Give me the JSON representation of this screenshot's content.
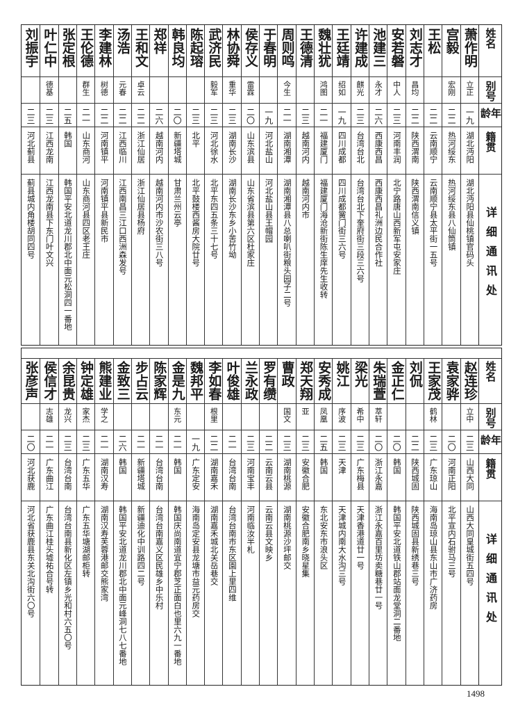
{
  "headers": {
    "name": "姓名",
    "alias": "别号",
    "age": "年龄",
    "origin": "籍贯",
    "address": "详细通讯处"
  },
  "top_table": [
    {
      "name": "萧作明",
      "alias": "立正",
      "age": "一九",
      "origin": "湖北沔阳",
      "address": "湖北沔阳县仙桃镇官码头"
    },
    {
      "name": "宫毅",
      "alias": "宏刚",
      "age": "二二",
      "origin": "热河绥东",
      "address": "热河绥东县八仙筒镇"
    },
    {
      "name": "王松",
      "alias": "",
      "age": "二二",
      "origin": "云南顺宁",
      "address": "云南顺宁县太平街一五号"
    },
    {
      "name": "刘志才",
      "alias": "昌均",
      "age": "二二",
      "origin": "陕西渭南",
      "address": "陕西渭南信义镇"
    },
    {
      "name": "安若磐",
      "alias": "中人",
      "age": "二三",
      "origin": "河南丰润",
      "address": "北宁路唐山西新军屯安家庄"
    },
    {
      "name": "池建三",
      "alias": "永才",
      "age": "二六",
      "origin": "西康西昌",
      "address": "西康西昌礼洲边民合作社"
    },
    {
      "name": "许建成",
      "alias": "麒光",
      "age": "二三",
      "origin": "台湾台北",
      "address": "台湾台北下奎府街三段三六号"
    },
    {
      "name": "王廷靖",
      "alias": "绍如",
      "age": "一九",
      "origin": "四川成都",
      "address": "四川成都黉门街三六号"
    },
    {
      "name": "魏壮犹",
      "alias": "鸿图",
      "age": "二一",
      "origin": "福建厦门",
      "address": "福建厦门海沧新街陈生庠先生收转"
    },
    {
      "name": "王德清",
      "alias": "",
      "age": "二三",
      "origin": "越南河内",
      "address": "越南河内市"
    },
    {
      "name": "周则鸣",
      "alias": "今生",
      "age": "二一",
      "origin": "湖南湘潭",
      "address": "湖南湘潭县八总喇叭街粮头园子二号"
    },
    {
      "name": "于春明",
      "alias": "",
      "age": "一九",
      "origin": "河北盐山",
      "address": "河北盐山县王帽园"
    },
    {
      "name": "侯存义",
      "alias": "雷霖",
      "age": "二〇",
      "origin": "山东滨县",
      "address": "山东省滨县第六区杜家庄"
    },
    {
      "name": "林协舜",
      "alias": "重华",
      "age": "二三",
      "origin": "湖南长沙",
      "address": "湖南长沙东乡小苦竹坳"
    },
    {
      "name": "武济民",
      "alias": "毅军",
      "age": "二三",
      "origin": "河北徐水",
      "address": "北平东四五条三十七号"
    },
    {
      "name": "陈起瑢",
      "alias": "",
      "age": "二三",
      "origin": "北平",
      "address": "北平鼓楼西酱房大院廿号"
    },
    {
      "name": "韩良均",
      "alias": "",
      "age": "二〇",
      "origin": "新疆塔城",
      "address": "甘肃兰州云亭"
    },
    {
      "name": "郑祥",
      "alias": "",
      "age": "二六",
      "origin": "越南河内",
      "address": "越南河内市沙农街三八号"
    },
    {
      "name": "王和文",
      "alias": "卓云",
      "age": "二二",
      "origin": "浙江仙居",
      "address": "浙江仙居县杨府"
    },
    {
      "name": "汤浩",
      "alias": "元春",
      "age": "二二",
      "origin": "江西临川",
      "address": "江西南昌三江口西洲森发号"
    },
    {
      "name": "李建林",
      "alias": "树德",
      "age": "二二",
      "origin": "河南镇平",
      "address": "河南镇平县新民市"
    },
    {
      "name": "王伦德",
      "alias": "群生",
      "age": "二一",
      "origin": "山东商河",
      "address": "山东商河县四区老王庄"
    },
    {
      "name": "张定根",
      "alias": "",
      "age": "二五",
      "origin": "韩国",
      "address": "韩国平安北道龙川郡北中面元松洞四一番地"
    },
    {
      "name": "叶仁中",
      "alias": "德基",
      "age": "二三",
      "origin": "江西龙南",
      "address": "江西龙南县下东门叶文兴"
    },
    {
      "name": "刘振宇",
      "alias": "",
      "age": "二三",
      "origin": "河北蓟县",
      "address": "蓟县城内角楼胡同四号"
    }
  ],
  "bottom_table": [
    {
      "name": "赵连珍",
      "alias": "立中",
      "age": "二三",
      "origin": "山西大同",
      "address": "山西大同皇城街五四号"
    },
    {
      "name": "袁家骅",
      "alias": "",
      "age": "二〇",
      "origin": "河南正阳",
      "address": "北平宣内石驸马三号"
    },
    {
      "name": "王家茂",
      "alias": "鹤林",
      "age": "二三",
      "origin": "广东琼山",
      "address": "海南岛琼山县东山市广济药房"
    },
    {
      "name": "刘侃",
      "alias": "",
      "age": "二二",
      "origin": "陕西城固",
      "address": "陕西城固县新绣巷三号"
    },
    {
      "name": "金正仁",
      "alias": "",
      "age": "二〇",
      "origin": "韩国",
      "address": "韩国平安北道铁山郡站面龙堂洞二番地"
    },
    {
      "name": "朱瑞萱",
      "alias": "萃轩",
      "age": "二〇",
      "origin": "浙江永嘉",
      "address": "浙江永嘉百里坊卖糖巷廿一号"
    },
    {
      "name": "梁光",
      "alias": "希中",
      "age": "二三",
      "origin": "广东梅县",
      "address": "天津香港道廿一号"
    },
    {
      "name": "姚江",
      "alias": "序波",
      "age": "二三",
      "origin": "天津",
      "address": "天津城内南大水沟三号"
    },
    {
      "name": "安秀成",
      "alias": "凤凰",
      "age": "二五",
      "origin": "韩国",
      "address": "东北安东市浪头区"
    },
    {
      "name": "郑天翔",
      "alias": "亚",
      "age": "二三",
      "origin": "安徽合肥",
      "address": "安徽合肥南乡晓星集"
    },
    {
      "name": "曹政",
      "alias": "国文",
      "age": "二三",
      "origin": "湖南桃源",
      "address": "湖南桃源沙坪邮交"
    },
    {
      "name": "罗有缵",
      "alias": "",
      "age": "二二",
      "origin": "云南云县",
      "address": "云南云县文映乡"
    },
    {
      "name": "兰永政",
      "alias": "",
      "age": "二三",
      "origin": "河南宝丰",
      "address": "河南临汝半札"
    },
    {
      "name": "叶俊雄",
      "alias": "",
      "age": "二一",
      "origin": "台湾台南",
      "address": "台湾台南市东区園上里四维"
    },
    {
      "name": "李如春",
      "alias": "根里",
      "age": "二二",
      "origin": "湖南嘉禾",
      "address": "湖南嘉禾城北关岳巷交"
    },
    {
      "name": "魏邦平",
      "alias": "",
      "age": "一九",
      "origin": "广东定安",
      "address": "海南岛定安县龙塘市益元药房交"
    },
    {
      "name": "金是九",
      "alias": "东元",
      "age": "二一",
      "origin": "韩国",
      "address": "韩国庆尚南道宜宁郡芝正面白也里六九一番地"
    },
    {
      "name": "陈家辉",
      "alias": "",
      "age": "二一",
      "origin": "台湾台南",
      "address": "台湾台南嘉义区民雄乡中乐村"
    },
    {
      "name": "步占云",
      "alias": "",
      "age": "二一",
      "origin": "新疆塔城",
      "address": "新疆迪化中训路四二号"
    },
    {
      "name": "金致三",
      "alias": "",
      "age": "二六",
      "origin": "韩国",
      "address": "韩国平安北道龙川郡北中面元峰洞七八七番地"
    },
    {
      "name": "熊建业",
      "alias": "学之",
      "age": "二一",
      "origin": "湖南汉寿",
      "address": "湖南汉寿芙蓉港邮交熊家湾"
    },
    {
      "name": "钟定雄",
      "alias": "家杰",
      "age": "二三",
      "origin": "广东五华",
      "address": "广东五华塘湖邮柜转"
    },
    {
      "name": "余昆贵",
      "alias": "龙兴",
      "age": "二三",
      "origin": "台湾台南",
      "address": "台湾台南县新化区左镇乡光和村六五〇号"
    },
    {
      "name": "侯信才",
      "alias": "志雄",
      "age": "二一",
      "origin": "广东曲江",
      "address": "广东曲江桂头墟祐合号转"
    },
    {
      "name": "张彦声",
      "alias": "",
      "age": "二〇",
      "origin": "河北获鹿",
      "address": "河北省获鹿县东关北沟街六〇号"
    }
  ],
  "page_number": "1498"
}
